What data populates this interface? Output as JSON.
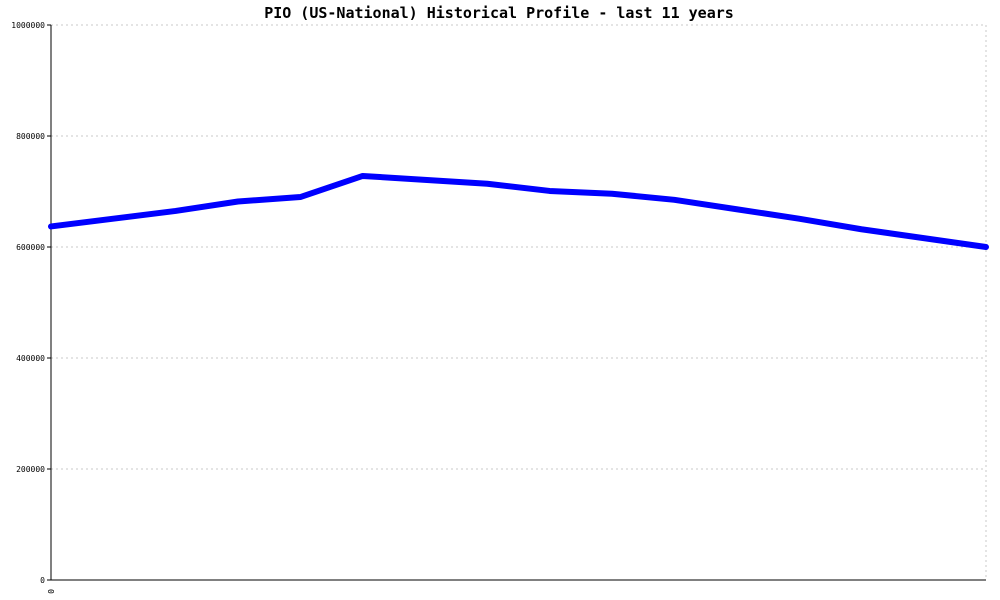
{
  "chart_data": {
    "type": "line",
    "title": "PIO (US-National) Historical Profile - last 11 years",
    "xlabel": "",
    "ylabel": "",
    "x_tick_labels": [
      "0"
    ],
    "y_tick_labels": [
      "0",
      "200000",
      "400000",
      "600000",
      "800000",
      "1000000"
    ],
    "ylim": [
      0,
      1000000
    ],
    "grid": true,
    "series": [
      {
        "color": "#0000ff",
        "values": [
          637000,
          651000,
          665000,
          682000,
          690000,
          728000,
          721000,
          714000,
          701000,
          696000,
          685000,
          668000,
          651000,
          632000,
          616000,
          600000
        ]
      }
    ]
  }
}
